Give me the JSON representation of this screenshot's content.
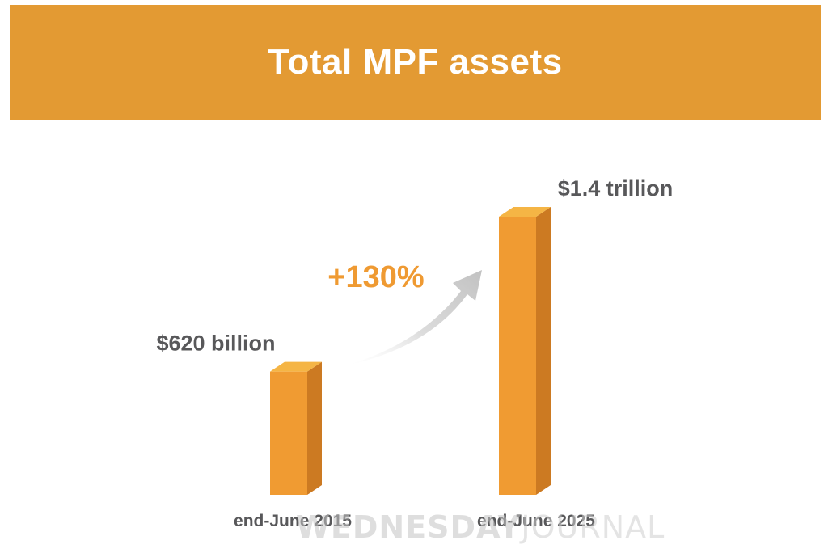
{
  "header": {
    "title": "Total MPF assets"
  },
  "chart_data": {
    "type": "bar",
    "title": "Total MPF assets",
    "categories": [
      "end-June 2015",
      "end-June 2025"
    ],
    "values": [
      620,
      1400
    ],
    "units": "billion",
    "data_labels": [
      "$620 billion",
      "$1.4 trillion"
    ],
    "annotation": "+130%",
    "ylim": [
      0,
      1400
    ],
    "grid": false,
    "legend": "none"
  },
  "colors": {
    "header_bg": "#e39a33",
    "bar_front": "#f09b32",
    "bar_side": "#cc7a22",
    "bar_top": "#f5b545",
    "label_text": "#58585a",
    "annotation_text": "#ef9a32",
    "arrow": "#d0d0d0"
  },
  "watermark": {
    "part1": "WEDNESDAY",
    "part2": "JOURNAL"
  }
}
